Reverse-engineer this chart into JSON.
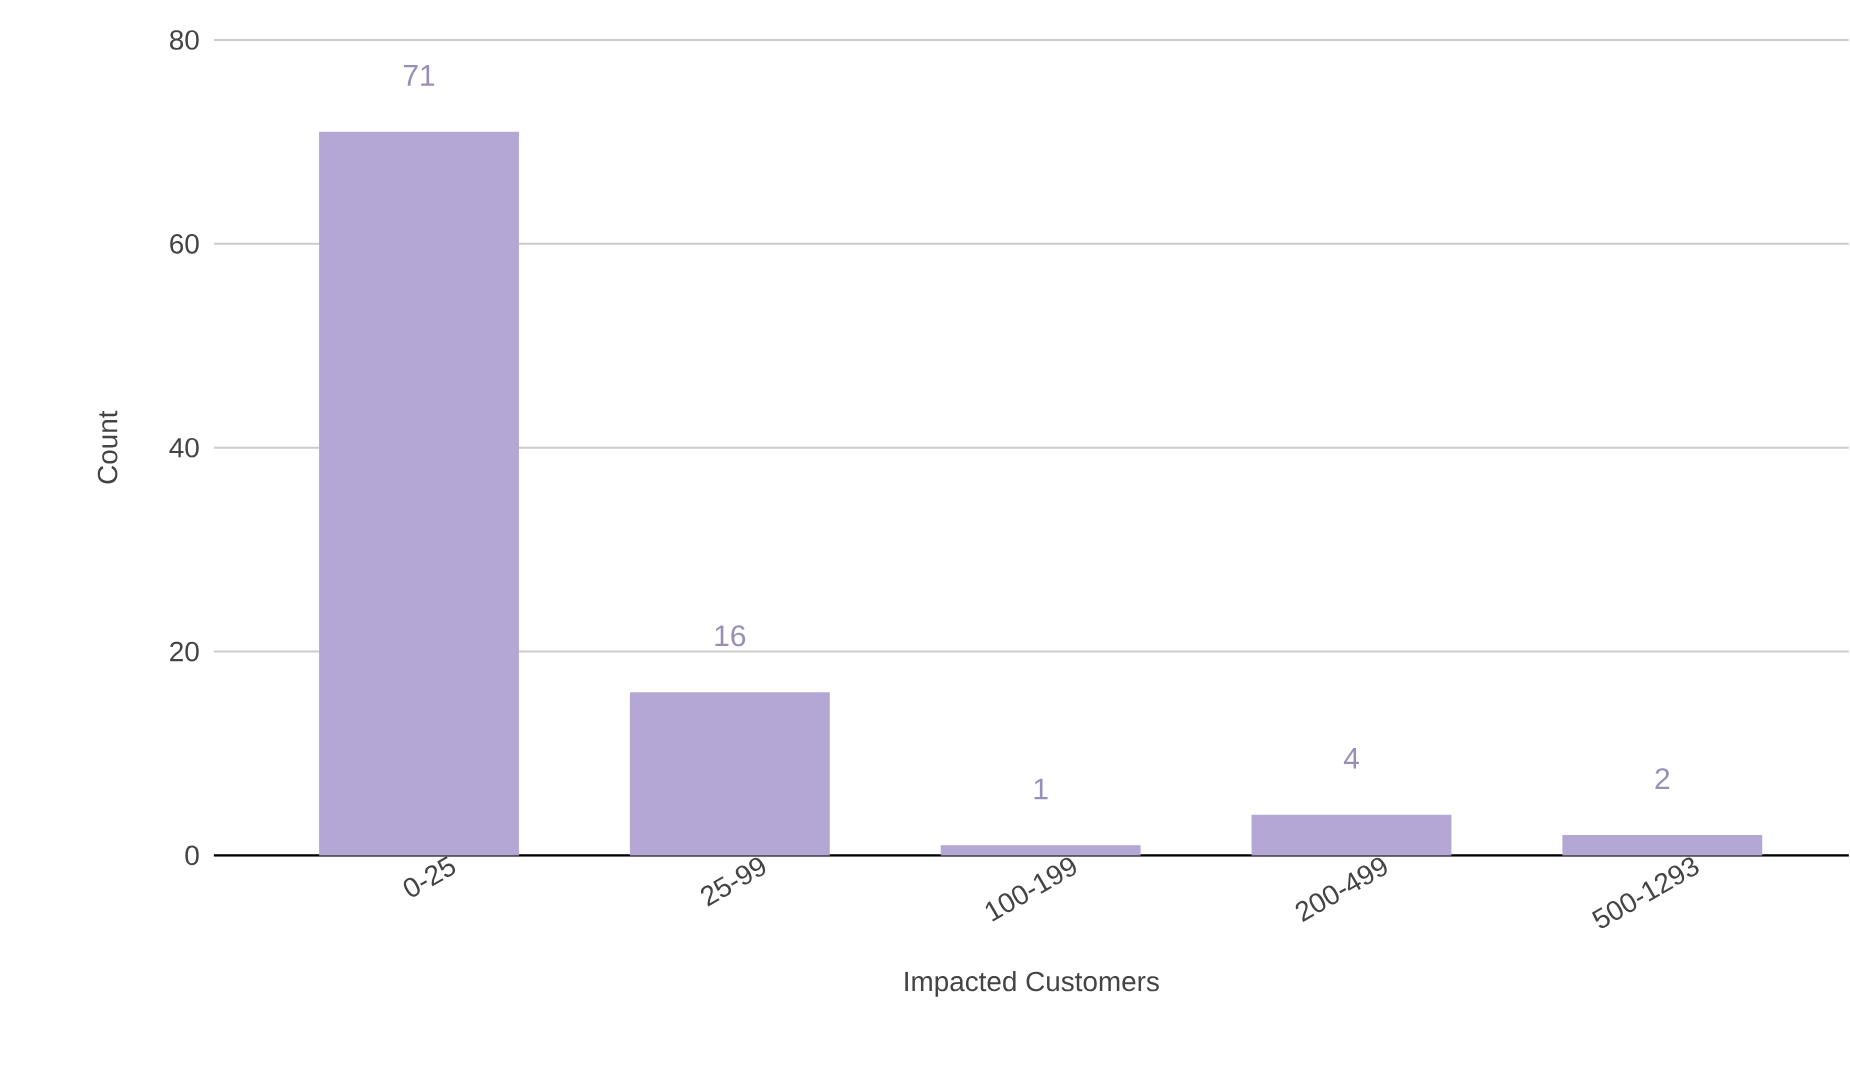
{
  "chart_data": {
    "type": "bar",
    "xlabel": "Impacted Customers",
    "ylabel": "Count",
    "categories": [
      "0-25",
      "25-99",
      "100-199",
      "200-499",
      "500-1293"
    ],
    "values": [
      71,
      16,
      1,
      4,
      2
    ],
    "color": "#b4a7d6",
    "ylim": [
      0,
      80
    ],
    "yticks": [
      0,
      20,
      40,
      60,
      80
    ],
    "grid": "y",
    "data_labels": true
  }
}
